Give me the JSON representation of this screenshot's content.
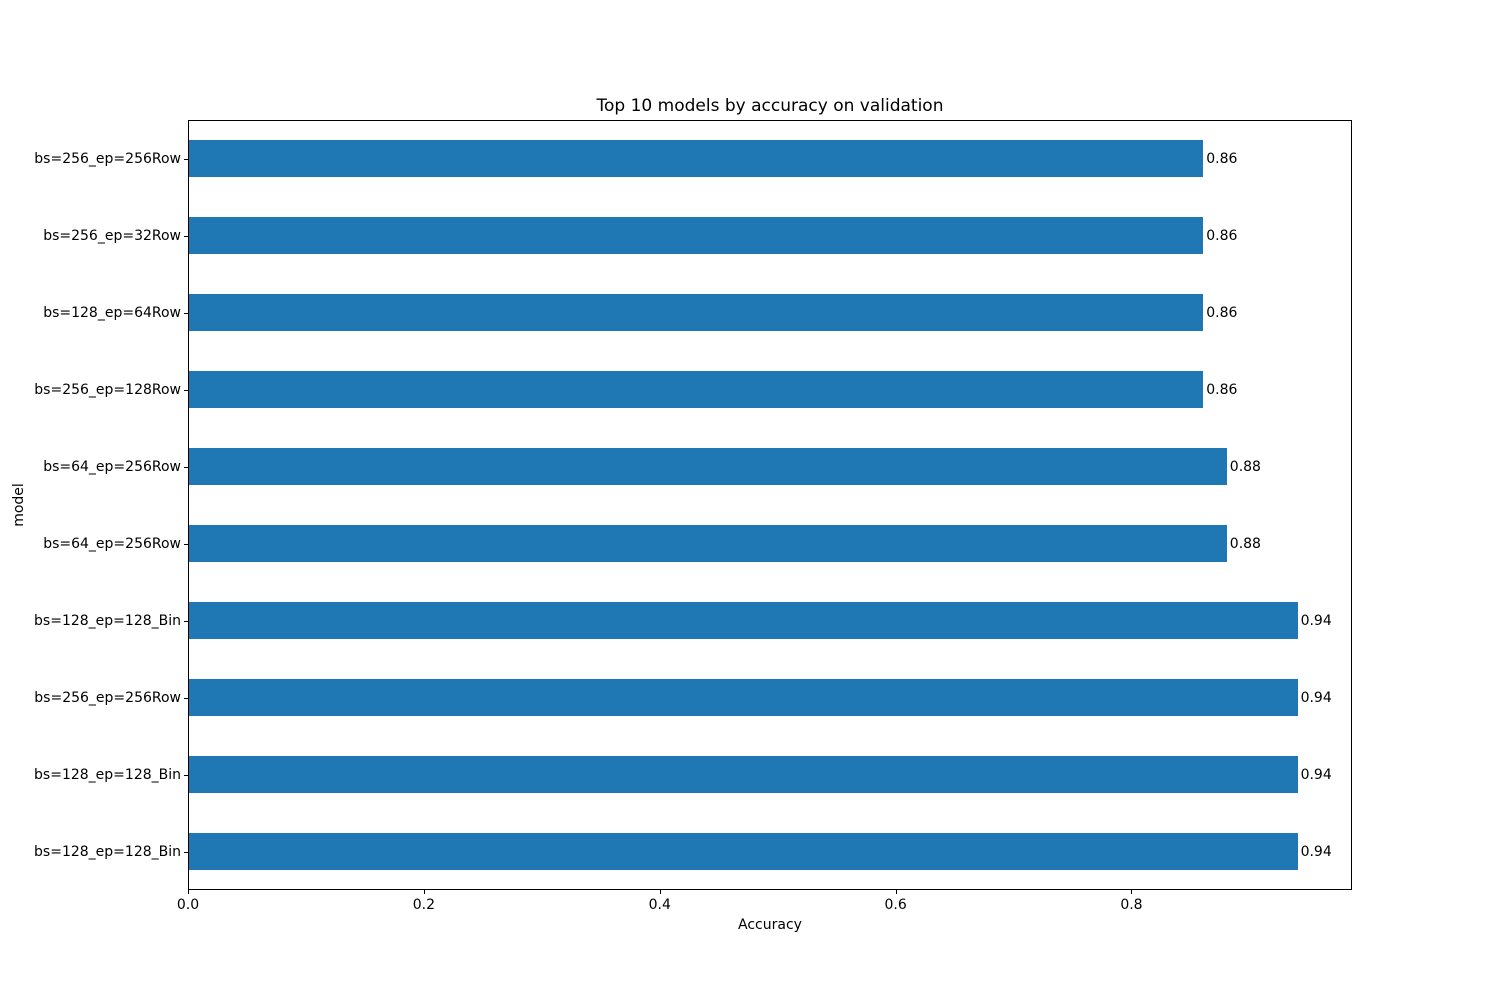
{
  "chart_data": {
    "type": "bar",
    "orientation": "horizontal",
    "title": "Top 10 models by accuracy on validation",
    "xlabel": "Accuracy",
    "ylabel": "model",
    "categories": [
      "bs=256_ep=256Row",
      "bs=256_ep=32Row",
      "bs=128_ep=64Row",
      "bs=256_ep=128Row",
      "bs=64_ep=256Row",
      "bs=64_ep=256Row",
      "bs=128_ep=128_Bin",
      "bs=256_ep=256Row",
      "bs=128_ep=128_Bin",
      "bs=128_ep=128_Bin"
    ],
    "values": [
      0.86,
      0.86,
      0.86,
      0.86,
      0.88,
      0.88,
      0.94,
      0.94,
      0.94,
      0.94
    ],
    "value_labels": [
      "0.86",
      "0.86",
      "0.86",
      "0.86",
      "0.88",
      "0.88",
      "0.94",
      "0.94",
      "0.94",
      "0.94"
    ],
    "xlim": [
      0,
      0.987
    ],
    "xticks": [
      0.0,
      0.2,
      0.4,
      0.6,
      0.8
    ],
    "xtick_labels": [
      "0.0",
      "0.2",
      "0.4",
      "0.6",
      "0.8"
    ],
    "bar_color": "#1f77b4",
    "grid": false,
    "legend": null,
    "background_color": "#ffffff",
    "spine_color": "#000000"
  }
}
